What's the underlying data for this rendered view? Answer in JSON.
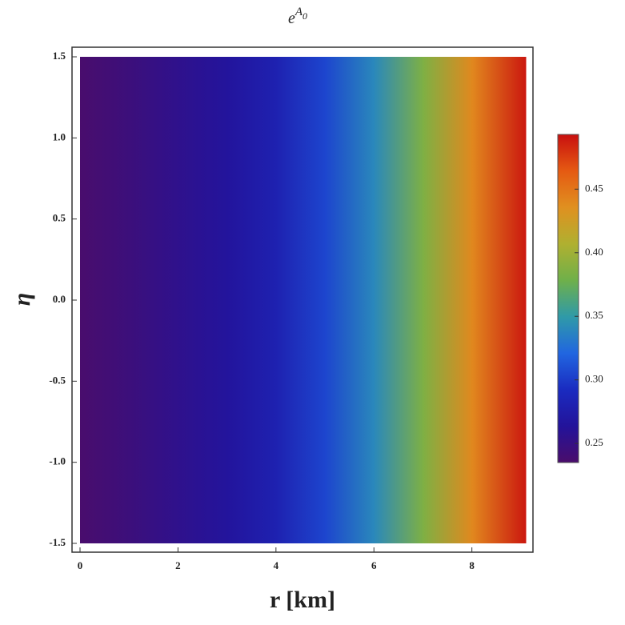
{
  "chart_data": {
    "type": "density",
    "title": {
      "base": "e",
      "sup": "A",
      "sub": "0"
    },
    "x_label": "r [km]",
    "y_label": "η",
    "x": [
      0,
      1,
      2,
      3,
      4,
      5,
      6,
      7,
      8,
      9.1
    ],
    "values": [
      0.236,
      0.245,
      0.255,
      0.265,
      0.28,
      0.305,
      0.34,
      0.385,
      0.44,
      0.49
    ],
    "xlim": [
      0,
      9.1
    ],
    "ylim": [
      -1.5,
      1.5
    ],
    "xticks": [
      0,
      2,
      4,
      6,
      8
    ],
    "yticks": [
      1.5,
      {
        "value": 1,
        "label": "1.0"
      },
      0.5,
      {
        "value": 0,
        "label": "0.0"
      },
      -0.5,
      {
        "value": -1,
        "label": "-1.0"
      },
      -1.5
    ],
    "clim": [
      0.235,
      0.493
    ],
    "cticks": [
      0.25,
      {
        "value": 0.3,
        "label": "0.30"
      },
      0.35,
      {
        "value": 0.4,
        "label": "0.40"
      },
      0.45
    ],
    "colormap": [
      "#4a0d6b",
      "#23139a",
      "#1a2bc0",
      "#2166e0",
      "#2f9aa8",
      "#6fb04a",
      "#b0b030",
      "#e09020",
      "#e55a12",
      "#c80f0f"
    ]
  }
}
